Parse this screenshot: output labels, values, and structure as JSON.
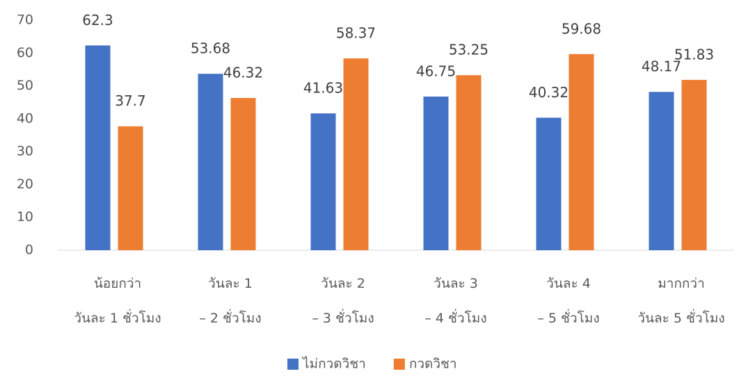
{
  "chart_data": {
    "type": "bar",
    "categories": [
      "น้อยกว่า\nวันละ 1 ชั่วโมง",
      "วันละ 1\n– 2 ชั่วโมง",
      "วันละ 2\n– 3 ชั่วโมง",
      "วันละ 3\n– 4 ชั่วโมง",
      "วันละ 4\n– 5 ชั่วโมง",
      "มากกว่า\nวันละ 5 ชั่วโมง"
    ],
    "series": [
      {
        "name": "ไม่กวดวิชา",
        "color": "#4472c4",
        "values": [
          62.3,
          53.68,
          41.63,
          46.75,
          40.32,
          48.17
        ]
      },
      {
        "name": "กวดวิชา",
        "color": "#ed7d31",
        "values": [
          37.7,
          46.32,
          58.37,
          53.25,
          59.68,
          51.83
        ]
      }
    ],
    "ylim": [
      0,
      70
    ],
    "yticks": [
      0,
      10,
      20,
      30,
      40,
      50,
      60,
      70
    ],
    "grid": false,
    "legend": "bottom"
  }
}
